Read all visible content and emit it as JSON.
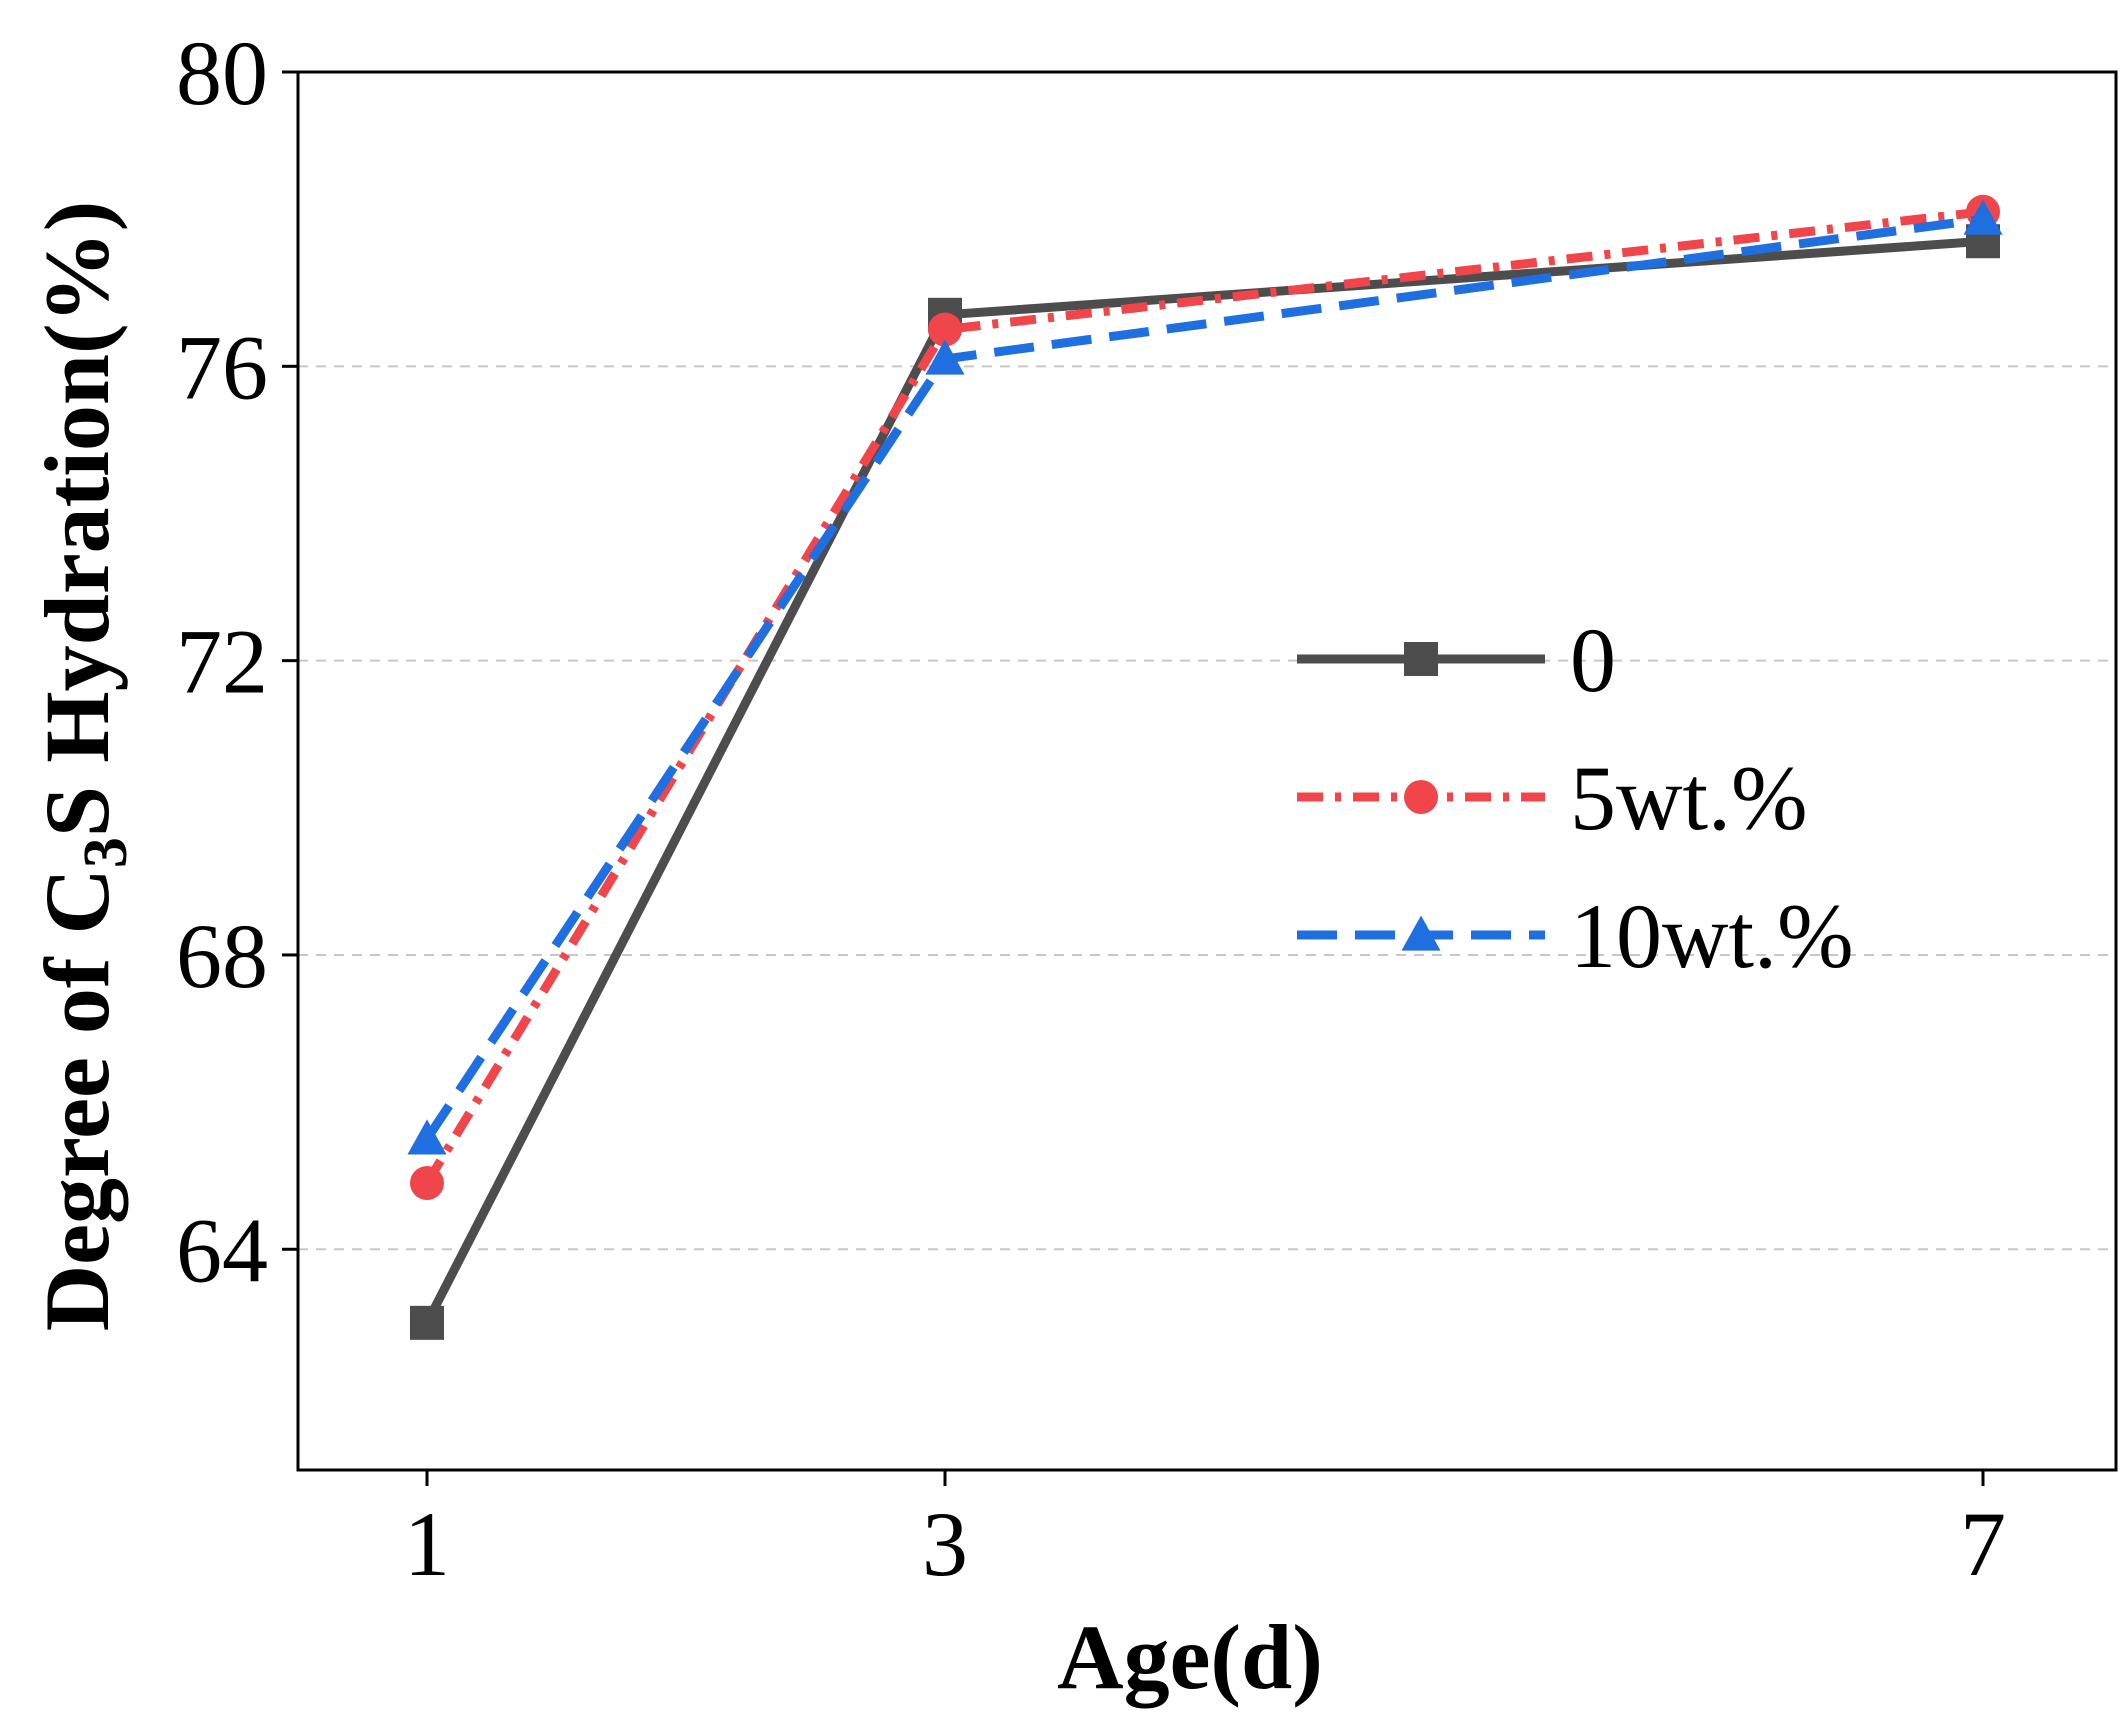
{
  "chart_data": {
    "type": "line",
    "title": "",
    "x": [
      "1",
      "3",
      "7"
    ],
    "xlabel": "Age(d)",
    "ylabel_prefix": "Degree of C",
    "ylabel_subscript": "3",
    "ylabel_suffix": "S Hydration(%)",
    "ylim": [
      61,
      80
    ],
    "yticks": [
      "64",
      "68",
      "72",
      "76",
      "80"
    ],
    "grid": "horizontal dashed",
    "legend_position": "center-right",
    "series": [
      {
        "name": "0",
        "values": [
          63.0,
          76.7,
          77.7
        ],
        "color": "#4d4d4d",
        "line_style": "solid",
        "marker": "square"
      },
      {
        "name": "5wt.%",
        "values": [
          64.9,
          76.5,
          78.1
        ],
        "color": "#f0454a",
        "line_style": "dashdot",
        "marker": "circle"
      },
      {
        "name": "10wt.%",
        "values": [
          65.5,
          76.1,
          78.0
        ],
        "color": "#1f6fe0",
        "line_style": "dashed",
        "marker": "triangle"
      }
    ]
  }
}
